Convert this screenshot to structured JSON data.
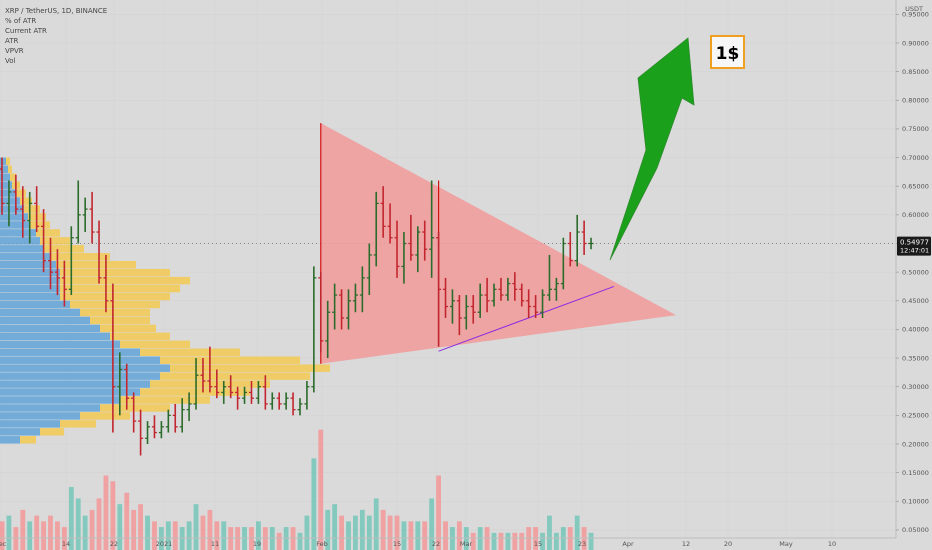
{
  "header": {
    "symbol": "XRP / TetherUS, 1D, BINANCE",
    "indicators": [
      "% of ATR",
      "Current ATR",
      "ATR",
      "VPVR",
      "Vol"
    ]
  },
  "price_scale": {
    "currency": "USDT",
    "current_price": "0.54977",
    "countdown": "12:47:01"
  },
  "annotation": {
    "target_label": "1$"
  },
  "colors": {
    "bull": "#2b6b2b",
    "bear": "#c2262e",
    "triangle": "#f29a9a",
    "arrow": "#1aa01a",
    "vpvr_blue": "#5aa0d8",
    "vpvr_yellow": "#f5c84a",
    "vol_up": "#79c7b9",
    "vol_down": "#f29a9a",
    "badge_border": "#f0a020"
  },
  "chart_data": {
    "type": "candlestick",
    "title": "XRP / TetherUS, 1D, BINANCE",
    "y_unit": "USDT",
    "ylim": [
      0.015,
      0.975
    ],
    "y_ticks": [
      "0.95000",
      "0.90000",
      "0.85000",
      "0.80000",
      "0.75000",
      "0.70000",
      "0.65000",
      "0.60000",
      "0.55000",
      "0.50000",
      "0.45000",
      "0.40000",
      "0.35000",
      "0.30000",
      "0.25000",
      "0.20000",
      "0.15000",
      "0.10000",
      "0.05000"
    ],
    "x_ticks": [
      "Dec",
      "14",
      "22",
      "2021",
      "11",
      "19",
      "Feb",
      "15",
      "22",
      "Mar",
      "15",
      "23",
      "Apr",
      "12",
      "20",
      "May",
      "10"
    ],
    "ohlc": [
      [
        0.68,
        0.7,
        0.6,
        0.62
      ],
      [
        0.62,
        0.66,
        0.58,
        0.64
      ],
      [
        0.64,
        0.67,
        0.6,
        0.61
      ],
      [
        0.61,
        0.65,
        0.56,
        0.59
      ],
      [
        0.59,
        0.64,
        0.55,
        0.62
      ],
      [
        0.62,
        0.65,
        0.57,
        0.58
      ],
      [
        0.58,
        0.61,
        0.5,
        0.52
      ],
      [
        0.52,
        0.56,
        0.47,
        0.5
      ],
      [
        0.5,
        0.54,
        0.46,
        0.49
      ],
      [
        0.49,
        0.52,
        0.44,
        0.47
      ],
      [
        0.47,
        0.58,
        0.46,
        0.56
      ],
      [
        0.56,
        0.66,
        0.55,
        0.6
      ],
      [
        0.6,
        0.63,
        0.57,
        0.61
      ],
      [
        0.61,
        0.64,
        0.55,
        0.57
      ],
      [
        0.57,
        0.59,
        0.48,
        0.49
      ],
      [
        0.49,
        0.53,
        0.43,
        0.45
      ],
      [
        0.45,
        0.48,
        0.22,
        0.3
      ],
      [
        0.3,
        0.36,
        0.25,
        0.33
      ],
      [
        0.33,
        0.34,
        0.26,
        0.28
      ],
      [
        0.28,
        0.29,
        0.22,
        0.24
      ],
      [
        0.24,
        0.26,
        0.18,
        0.21
      ],
      [
        0.21,
        0.24,
        0.2,
        0.23
      ],
      [
        0.23,
        0.25,
        0.21,
        0.22
      ],
      [
        0.22,
        0.24,
        0.21,
        0.23
      ],
      [
        0.23,
        0.26,
        0.22,
        0.25
      ],
      [
        0.25,
        0.27,
        0.22,
        0.23
      ],
      [
        0.23,
        0.28,
        0.22,
        0.26
      ],
      [
        0.26,
        0.29,
        0.24,
        0.27
      ],
      [
        0.27,
        0.35,
        0.26,
        0.32
      ],
      [
        0.32,
        0.35,
        0.29,
        0.31
      ],
      [
        0.31,
        0.37,
        0.29,
        0.3
      ],
      [
        0.3,
        0.33,
        0.28,
        0.29
      ],
      [
        0.29,
        0.31,
        0.27,
        0.3
      ],
      [
        0.3,
        0.32,
        0.28,
        0.29
      ],
      [
        0.29,
        0.3,
        0.26,
        0.28
      ],
      [
        0.28,
        0.3,
        0.27,
        0.29
      ],
      [
        0.29,
        0.31,
        0.27,
        0.28
      ],
      [
        0.28,
        0.31,
        0.27,
        0.3
      ],
      [
        0.3,
        0.32,
        0.26,
        0.27
      ],
      [
        0.27,
        0.29,
        0.26,
        0.28
      ],
      [
        0.28,
        0.29,
        0.26,
        0.27
      ],
      [
        0.27,
        0.29,
        0.26,
        0.28
      ],
      [
        0.28,
        0.29,
        0.25,
        0.26
      ],
      [
        0.26,
        0.28,
        0.25,
        0.27
      ],
      [
        0.27,
        0.31,
        0.26,
        0.3
      ],
      [
        0.3,
        0.51,
        0.29,
        0.49
      ],
      [
        0.49,
        0.5,
        0.36,
        0.38
      ],
      [
        0.38,
        0.45,
        0.35,
        0.43
      ],
      [
        0.43,
        0.48,
        0.4,
        0.46
      ],
      [
        0.46,
        0.47,
        0.4,
        0.42
      ],
      [
        0.42,
        0.47,
        0.4,
        0.45
      ],
      [
        0.45,
        0.48,
        0.43,
        0.46
      ],
      [
        0.46,
        0.51,
        0.43,
        0.49
      ],
      [
        0.49,
        0.55,
        0.46,
        0.53
      ],
      [
        0.53,
        0.64,
        0.51,
        0.62
      ],
      [
        0.62,
        0.65,
        0.56,
        0.58
      ],
      [
        0.58,
        0.62,
        0.55,
        0.56
      ],
      [
        0.56,
        0.59,
        0.49,
        0.51
      ],
      [
        0.51,
        0.57,
        0.48,
        0.55
      ],
      [
        0.55,
        0.6,
        0.52,
        0.53
      ],
      [
        0.53,
        0.58,
        0.5,
        0.57
      ],
      [
        0.57,
        0.59,
        0.52,
        0.54
      ],
      [
        0.54,
        0.66,
        0.49,
        0.56
      ],
      [
        0.56,
        0.57,
        0.37,
        0.47
      ],
      [
        0.47,
        0.49,
        0.42,
        0.44
      ],
      [
        0.44,
        0.47,
        0.41,
        0.45
      ],
      [
        0.45,
        0.46,
        0.39,
        0.42
      ],
      [
        0.42,
        0.46,
        0.4,
        0.44
      ],
      [
        0.44,
        0.46,
        0.41,
        0.43
      ],
      [
        0.43,
        0.48,
        0.42,
        0.46
      ],
      [
        0.46,
        0.49,
        0.43,
        0.45
      ],
      [
        0.45,
        0.48,
        0.44,
        0.47
      ],
      [
        0.47,
        0.49,
        0.45,
        0.46
      ],
      [
        0.46,
        0.49,
        0.45,
        0.48
      ],
      [
        0.48,
        0.5,
        0.45,
        0.47
      ],
      [
        0.47,
        0.48,
        0.44,
        0.45
      ],
      [
        0.45,
        0.47,
        0.42,
        0.44
      ],
      [
        0.44,
        0.46,
        0.42,
        0.43
      ],
      [
        0.43,
        0.47,
        0.42,
        0.46
      ],
      [
        0.46,
        0.53,
        0.45,
        0.47
      ],
      [
        0.47,
        0.49,
        0.45,
        0.48
      ],
      [
        0.48,
        0.56,
        0.47,
        0.55
      ],
      [
        0.55,
        0.57,
        0.51,
        0.52
      ],
      [
        0.52,
        0.6,
        0.51,
        0.57
      ],
      [
        0.57,
        0.59,
        0.53,
        0.55
      ],
      [
        0.55,
        0.56,
        0.54,
        0.55
      ]
    ],
    "volume": [
      0.05,
      0.06,
      0.04,
      0.07,
      0.05,
      0.06,
      0.05,
      0.06,
      0.05,
      0.04,
      0.11,
      0.09,
      0.06,
      0.07,
      0.09,
      0.13,
      0.12,
      0.08,
      0.1,
      0.07,
      0.08,
      0.06,
      0.05,
      0.04,
      0.05,
      0.05,
      0.04,
      0.05,
      0.08,
      0.06,
      0.07,
      0.05,
      0.05,
      0.04,
      0.04,
      0.04,
      0.04,
      0.05,
      0.04,
      0.04,
      0.03,
      0.04,
      0.04,
      0.03,
      0.06,
      0.16,
      0.21,
      0.07,
      0.08,
      0.06,
      0.05,
      0.06,
      0.07,
      0.06,
      0.09,
      0.07,
      0.06,
      0.06,
      0.05,
      0.05,
      0.05,
      0.05,
      0.09,
      0.13,
      0.05,
      0.04,
      0.05,
      0.04,
      0.03,
      0.04,
      0.04,
      0.03,
      0.03,
      0.03,
      0.03,
      0.03,
      0.04,
      0.04,
      0.03,
      0.06,
      0.03,
      0.04,
      0.04,
      0.06,
      0.04,
      0.03
    ],
    "vpvr": {
      "price_from": 0.2,
      "price_to": 0.7,
      "bins": [
        [
          0.1,
          0.08
        ],
        [
          0.2,
          0.12
        ],
        [
          0.3,
          0.18
        ],
        [
          0.4,
          0.25
        ],
        [
          0.5,
          0.35
        ],
        [
          0.6,
          0.45
        ],
        [
          0.7,
          0.55
        ],
        [
          0.75,
          0.6
        ],
        [
          0.8,
          0.75
        ],
        [
          0.85,
          0.8
        ],
        [
          0.8,
          0.7
        ],
        [
          0.7,
          0.5
        ],
        [
          0.6,
          0.35
        ],
        [
          0.55,
          0.3
        ],
        [
          0.5,
          0.28
        ],
        [
          0.45,
          0.3
        ],
        [
          0.4,
          0.35
        ],
        [
          0.35,
          0.45
        ],
        [
          0.3,
          0.55
        ],
        [
          0.3,
          0.6
        ],
        [
          0.3,
          0.65
        ],
        [
          0.3,
          0.55
        ],
        [
          0.28,
          0.4
        ],
        [
          0.25,
          0.3
        ],
        [
          0.22,
          0.2
        ],
        [
          0.2,
          0.15
        ],
        [
          0.18,
          0.12
        ],
        [
          0.15,
          0.1
        ],
        [
          0.14,
          0.09
        ],
        [
          0.12,
          0.08
        ],
        [
          0.1,
          0.06
        ],
        [
          0.08,
          0.05
        ],
        [
          0.06,
          0.04
        ],
        [
          0.05,
          0.03
        ],
        [
          0.04,
          0.02
        ],
        [
          0.03,
          0.02
        ]
      ]
    }
  }
}
